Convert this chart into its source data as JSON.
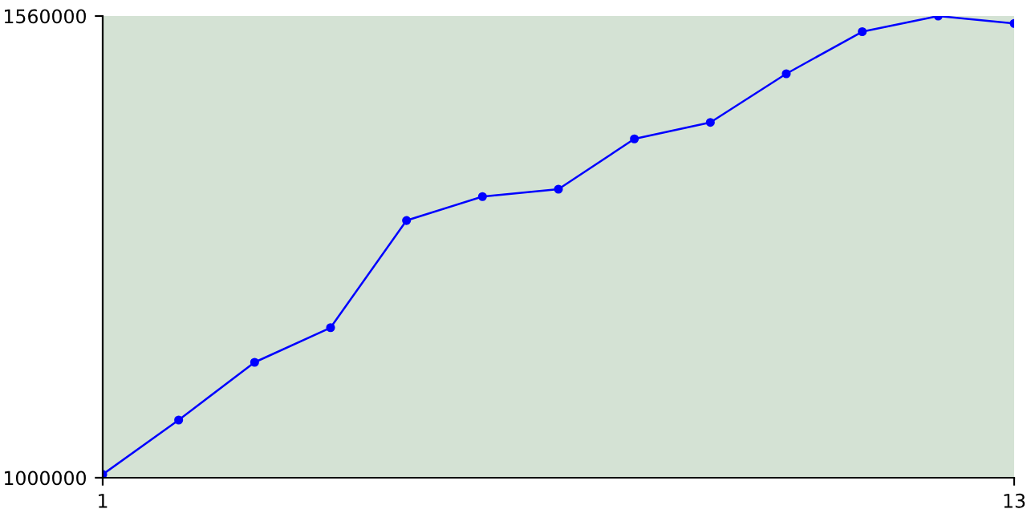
{
  "chart_data": {
    "type": "line",
    "x": [
      1,
      2,
      3,
      4,
      5,
      6,
      7,
      8,
      9,
      10,
      11,
      12,
      13
    ],
    "series": [
      {
        "color": "#0000ff",
        "values": [
          1004000,
          1070000,
          1140000,
          1182000,
          1312000,
          1341000,
          1350000,
          1411000,
          1431000,
          1490000,
          1541000,
          1560000,
          1551000
        ]
      }
    ],
    "xlim": [
      1,
      13
    ],
    "xticks": [
      1,
      13
    ],
    "ylim": [
      1000000,
      1560000
    ],
    "yticks": [
      1000000,
      1560000
    ],
    "grid": false,
    "legend": false,
    "marker": "circle",
    "line_style": "solid"
  }
}
